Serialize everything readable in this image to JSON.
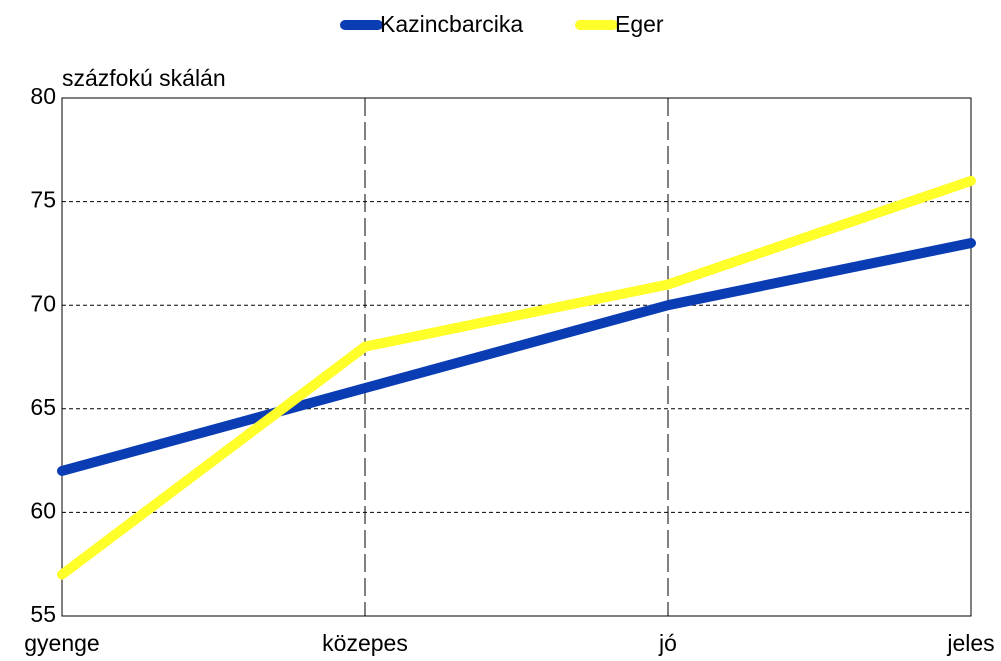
{
  "chart_data": {
    "type": "line",
    "y_label": "százfokú skálán",
    "categories": [
      "gyenge",
      "közepes",
      "jó",
      "jeles"
    ],
    "series": [
      {
        "name": "Kazincbarcika",
        "color": "#0a3cb4",
        "values": [
          62,
          66,
          70,
          73
        ]
      },
      {
        "name": "Eger",
        "color": "#ffff2a",
        "values": [
          57,
          68,
          71,
          76
        ]
      }
    ],
    "ylim": [
      55,
      80
    ],
    "yticks": [
      55,
      60,
      65,
      70,
      75,
      80
    ],
    "grid": true
  }
}
